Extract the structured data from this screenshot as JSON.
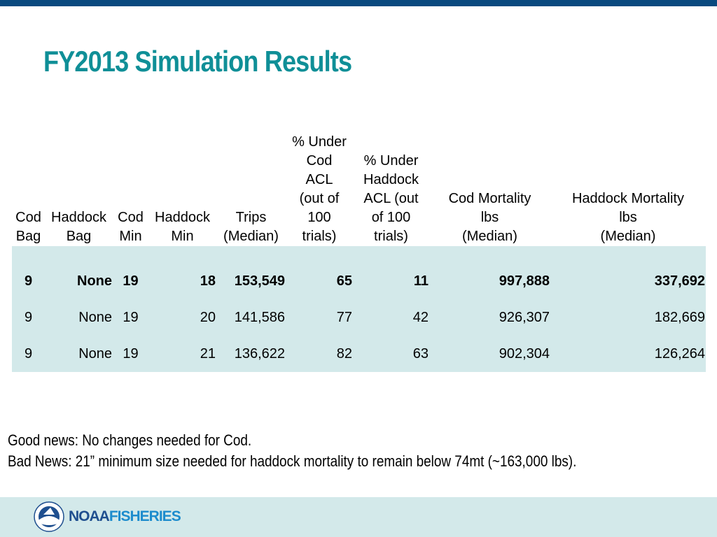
{
  "slide": {
    "title": "FY2013 Simulation Results",
    "notes": [
      "Good news:  No changes needed for Cod.",
      "Bad News: 21” minimum size needed for haddock mortality to remain below 74mt (~163,000 lbs)."
    ],
    "logo": {
      "word1": "NOAA",
      "word2": "FISHERIES"
    }
  },
  "colors": {
    "title": "#0f8f97",
    "top_bar": "#0a4a7f",
    "table_fill": "#d3e9ea",
    "footer_band": "#d3e9ea"
  },
  "chart_data": {
    "type": "table",
    "columns": [
      [
        "Cod",
        "Bag"
      ],
      [
        "Haddock",
        "Bag"
      ],
      [
        "Cod",
        "Min"
      ],
      [
        "Haddock",
        "Min"
      ],
      [
        "Trips",
        "(Median)"
      ],
      [
        "% Under",
        "Cod",
        "ACL",
        "(out of",
        "100",
        "trials)"
      ],
      [
        "% Under",
        "Haddock",
        "ACL (out",
        "of 100",
        "trials)"
      ],
      [
        "Cod Mortality",
        "lbs",
        "(Median)"
      ],
      [
        "Haddock Mortality",
        "lbs",
        "(Median)"
      ]
    ],
    "rows": [
      [
        "9",
        "None",
        "19",
        "18",
        "153,549",
        "65",
        "11",
        "997,888",
        "337,692"
      ],
      [
        "9",
        "None",
        "19",
        "20",
        "141,586",
        "77",
        "42",
        "926,307",
        "182,669"
      ],
      [
        "9",
        "None",
        "19",
        "21",
        "136,622",
        "82",
        "63",
        "902,304",
        "126,264"
      ]
    ],
    "bold_rows": [
      0
    ]
  }
}
